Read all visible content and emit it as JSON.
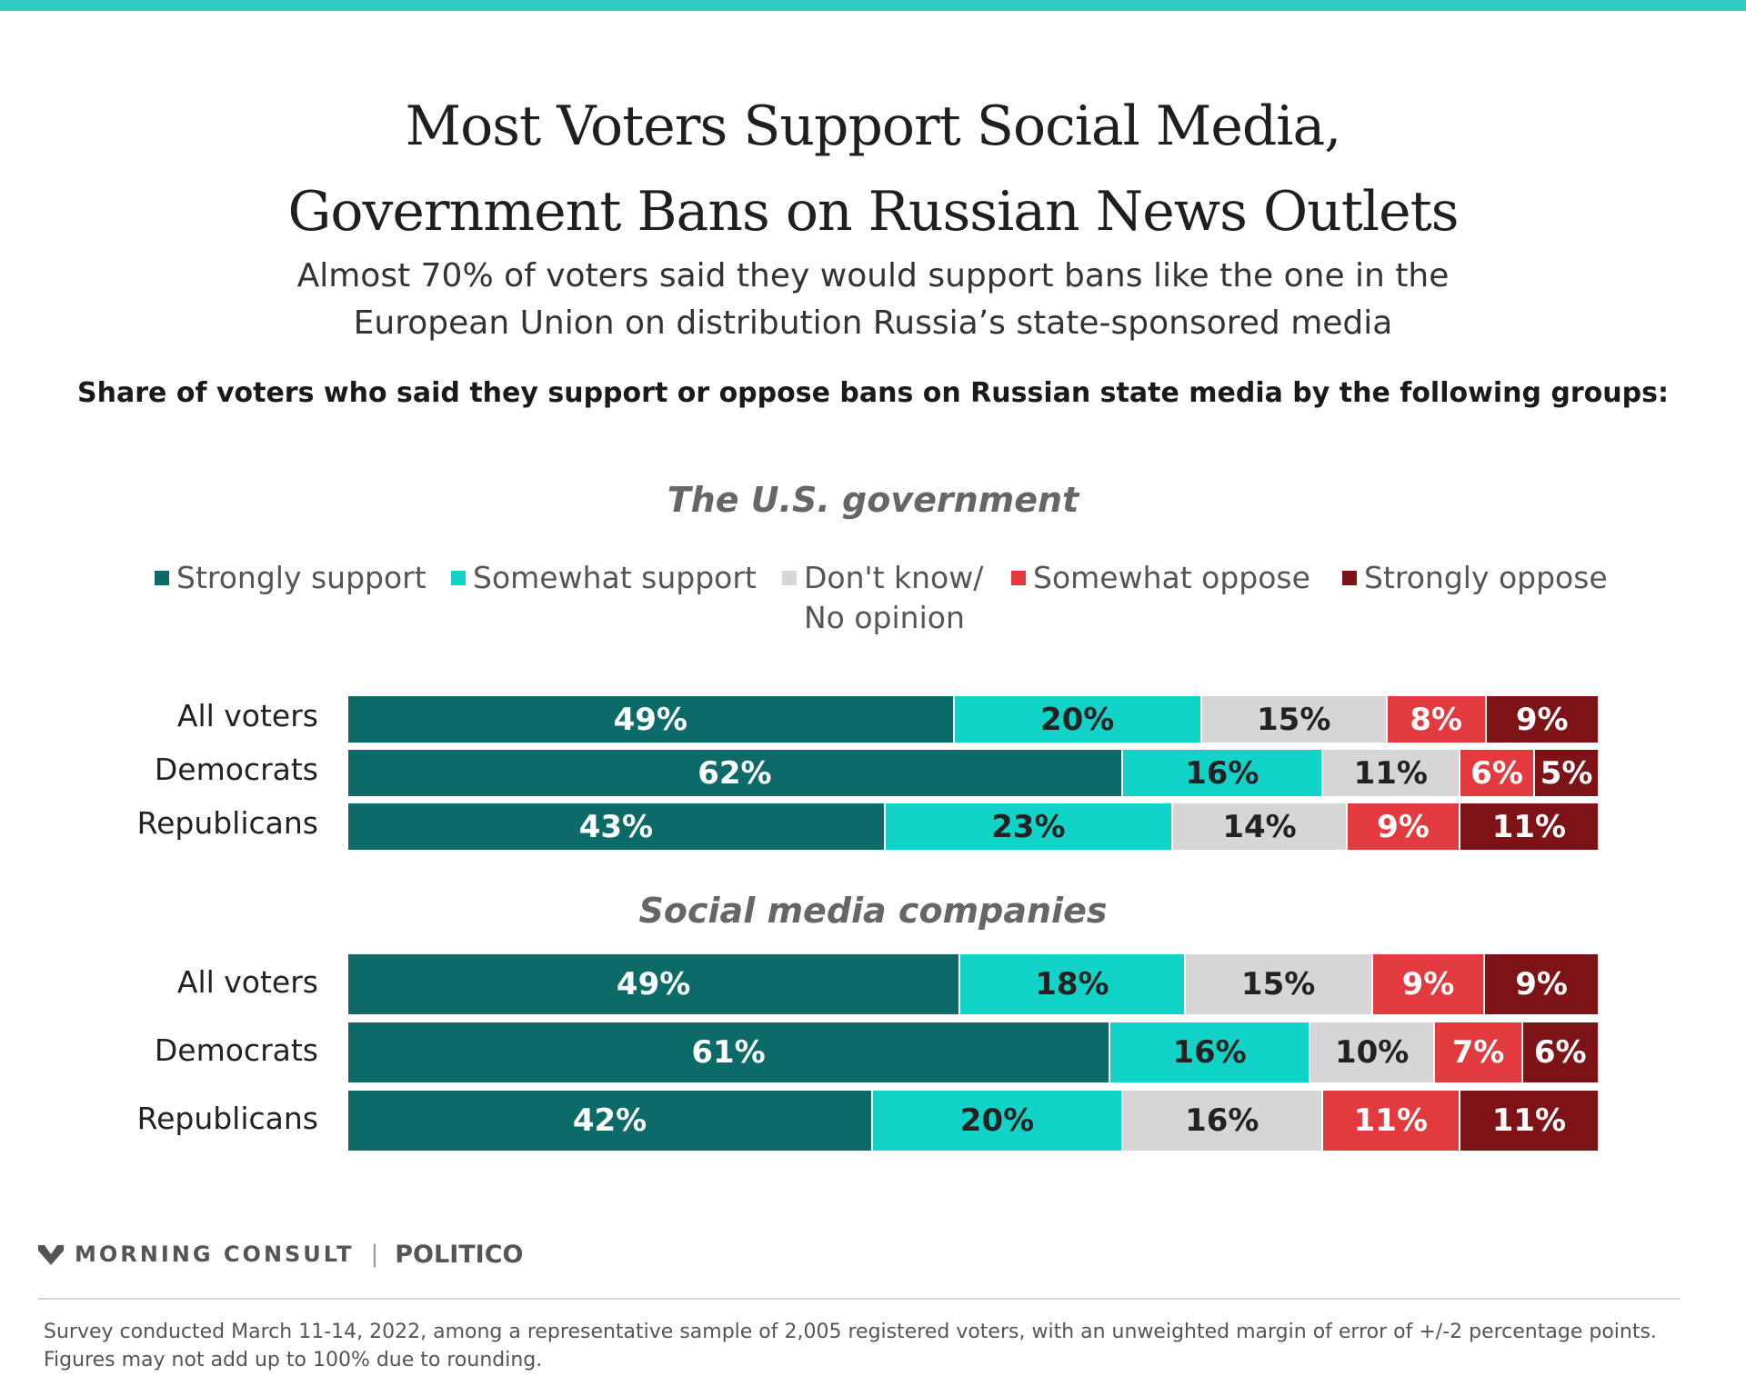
{
  "title_line1": "Most Voters Support Social Media,",
  "title_line2": "Government Bans on Russian News Outlets",
  "subtitle_line1": "Almost 70% of voters said they would support bans like the one in the",
  "subtitle_line2": "European Union on distribution Russia’s state-sponsored media",
  "caption": "Share of voters who said they support or oppose bans on Russian state media by the following groups:",
  "colors": {
    "strongly_support": "#0c6b68",
    "somewhat_support": "#12d3c8",
    "dont_know": "#d6d6d6",
    "somewhat_oppose": "#e23a3e",
    "strongly_oppose": "#7e1317",
    "accent_bar": "#2fcdbf"
  },
  "legend": [
    {
      "label": "Strongly support",
      "color": "#0c6b68"
    },
    {
      "label": "Somewhat support",
      "color": "#12d3c8"
    },
    {
      "label": "Don't know/\nNo opinion",
      "color": "#d6d6d6"
    },
    {
      "label": "Somewhat oppose",
      "color": "#e23a3e"
    },
    {
      "label": "Strongly oppose",
      "color": "#7e1317"
    }
  ],
  "chart_data": [
    {
      "type": "bar",
      "orientation": "horizontal",
      "stacked": true,
      "title": "The U.S. government",
      "categories": [
        "All voters",
        "Democrats",
        "Republicans"
      ],
      "series": [
        {
          "name": "Strongly support",
          "values": [
            49,
            62,
            43
          ]
        },
        {
          "name": "Somewhat support",
          "values": [
            20,
            16,
            23
          ]
        },
        {
          "name": "Don't know/ No opinion",
          "values": [
            15,
            11,
            14
          ]
        },
        {
          "name": "Somewhat oppose",
          "values": [
            8,
            6,
            9
          ]
        },
        {
          "name": "Strongly oppose",
          "values": [
            9,
            5,
            11
          ]
        }
      ],
      "value_suffix": "%",
      "legend_position": "top"
    },
    {
      "type": "bar",
      "orientation": "horizontal",
      "stacked": true,
      "title": "Social media companies",
      "categories": [
        "All voters",
        "Democrats",
        "Republicans"
      ],
      "series": [
        {
          "name": "Strongly support",
          "values": [
            49,
            61,
            42
          ]
        },
        {
          "name": "Somewhat support",
          "values": [
            18,
            16,
            20
          ]
        },
        {
          "name": "Don't know/ No opinion",
          "values": [
            15,
            10,
            16
          ]
        },
        {
          "name": "Somewhat oppose",
          "values": [
            9,
            7,
            11
          ]
        },
        {
          "name": "Strongly oppose",
          "values": [
            9,
            6,
            11
          ]
        }
      ],
      "value_suffix": "%"
    }
  ],
  "footer": {
    "brand": "MORNING CONSULT",
    "partner": "POLITICO",
    "note": "Survey conducted March 11-14, 2022, among a representative sample of 2,005 registered voters, with an unweighted margin of error of +/-2 percentage points. Figures may not add up to 100% due to rounding."
  }
}
